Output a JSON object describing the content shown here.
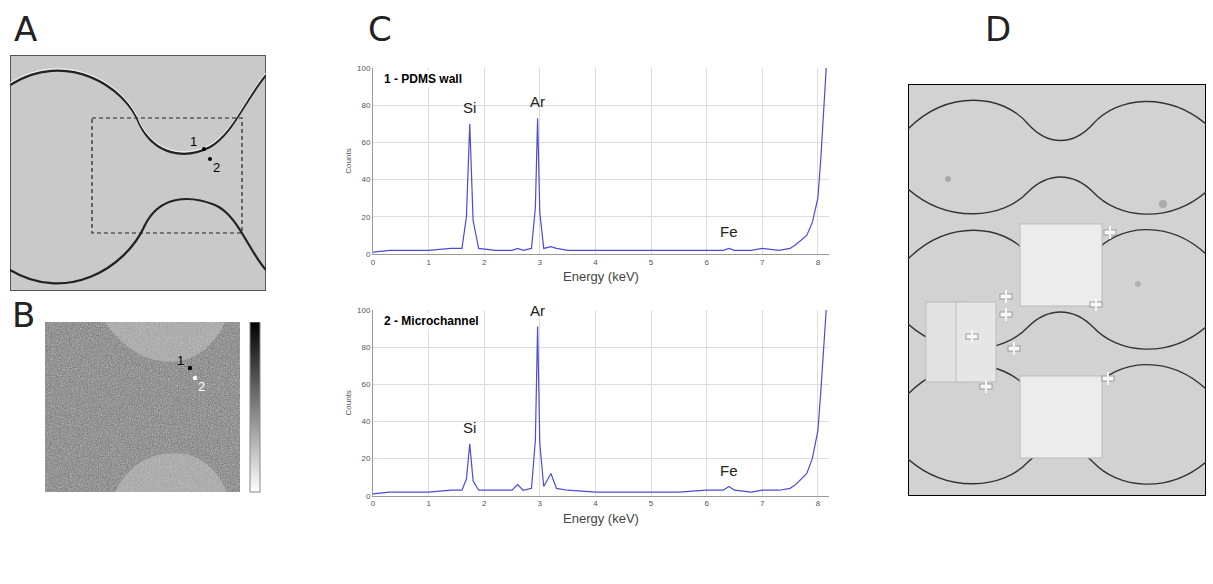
{
  "panels": [
    {
      "letter": "A",
      "points": [
        "1",
        "2"
      ]
    },
    {
      "letter": "B",
      "points": [
        "1",
        "2"
      ]
    },
    {
      "letter": "C"
    },
    {
      "letter": "D"
    }
  ],
  "chart_data": [
    {
      "type": "line",
      "title": "1 - PDMS wall",
      "x_label": "Energy (keV)",
      "y_label": "Counts",
      "color": "#4b4bd6",
      "grid": true,
      "xlim": [
        0,
        8.2
      ],
      "xticks": [
        0,
        1,
        2,
        3,
        4,
        5,
        6,
        7,
        8
      ],
      "ylim": [
        0,
        100
      ],
      "yticks": [
        0,
        20,
        40,
        60,
        80,
        100
      ],
      "x": [
        0,
        0.3,
        0.6,
        1.0,
        1.4,
        1.6,
        1.68,
        1.74,
        1.8,
        1.9,
        2.2,
        2.5,
        2.6,
        2.7,
        2.85,
        2.92,
        2.96,
        3.0,
        3.07,
        3.2,
        3.3,
        3.5,
        4.0,
        4.5,
        5.0,
        5.5,
        6.0,
        6.3,
        6.4,
        6.5,
        6.8,
        7.0,
        7.3,
        7.5,
        7.6,
        7.8,
        7.9,
        8.0,
        8.05,
        8.1,
        8.15
      ],
      "values": [
        1,
        2,
        2,
        2,
        3,
        3,
        20,
        70,
        18,
        3,
        2,
        2,
        3,
        2,
        3,
        25,
        73,
        22,
        3,
        4,
        3,
        2,
        2,
        2,
        2,
        2,
        2,
        2,
        3,
        2,
        2,
        3,
        2,
        3,
        5,
        10,
        17,
        30,
        50,
        75,
        100
      ],
      "annotations": [
        {
          "text": "Si",
          "x": 1.74,
          "y": 70
        },
        {
          "text": "Ar",
          "x": 2.96,
          "y": 73
        },
        {
          "text": "Fe",
          "x": 6.4,
          "y": 3
        }
      ]
    },
    {
      "type": "line",
      "title": "2 - Microchannel",
      "x_label": "Energy (keV)",
      "y_label": "Counts",
      "color": "#4b4bd6",
      "grid": true,
      "xlim": [
        0,
        8.2
      ],
      "xticks": [
        0,
        1,
        2,
        3,
        4,
        5,
        6,
        7,
        8
      ],
      "ylim": [
        0,
        100
      ],
      "yticks": [
        0,
        20,
        40,
        60,
        80,
        100
      ],
      "x": [
        0,
        0.3,
        0.6,
        1.0,
        1.4,
        1.6,
        1.68,
        1.74,
        1.8,
        1.9,
        2.2,
        2.5,
        2.6,
        2.7,
        2.85,
        2.92,
        2.96,
        3.0,
        3.07,
        3.2,
        3.3,
        3.5,
        4.0,
        4.5,
        5.0,
        5.5,
        6.0,
        6.3,
        6.4,
        6.5,
        6.8,
        7.0,
        7.3,
        7.5,
        7.6,
        7.8,
        7.9,
        8.0,
        8.05,
        8.1,
        8.15
      ],
      "values": [
        1,
        2,
        2,
        2,
        3,
        3,
        9,
        28,
        8,
        3,
        3,
        3,
        6,
        3,
        4,
        30,
        91,
        28,
        5,
        12,
        4,
        3,
        2,
        2,
        2,
        2,
        3,
        3,
        5,
        3,
        2,
        3,
        3,
        4,
        6,
        12,
        20,
        35,
        55,
        80,
        100
      ],
      "annotations": [
        {
          "text": "Si",
          "x": 1.74,
          "y": 28
        },
        {
          "text": "Ar",
          "x": 2.96,
          "y": 91
        },
        {
          "text": "Fe",
          "x": 6.4,
          "y": 5
        }
      ]
    }
  ]
}
